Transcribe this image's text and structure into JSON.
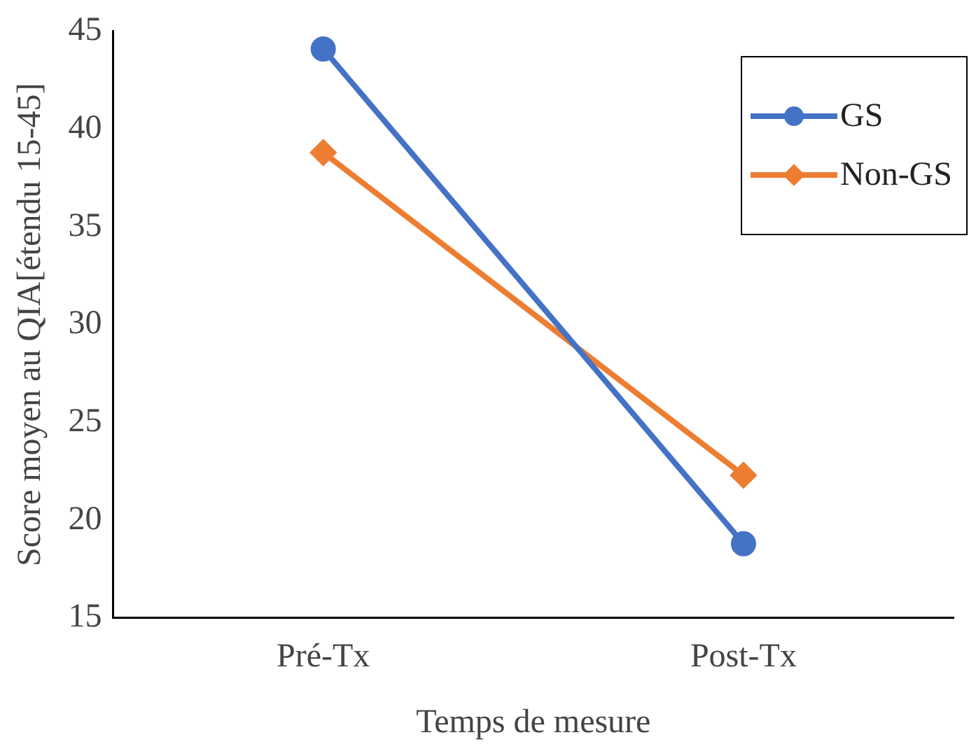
{
  "chart_data": {
    "type": "line",
    "xlabel": "Temps de mesure",
    "ylabel": "Score moyen au QIA[étendu 15-45]",
    "categories": [
      "Pré-Tx",
      "Post-Tx"
    ],
    "series": [
      {
        "name": "GS",
        "color": "#4472c4",
        "values": [
          44.1,
          18.8
        ],
        "marker": "circle"
      },
      {
        "name": "Non-GS",
        "color": "#ed7d31",
        "values": [
          38.8,
          22.3
        ],
        "marker": "diamond"
      }
    ],
    "ylim": [
      15,
      45
    ],
    "yticks": [
      15,
      20,
      25,
      30,
      35,
      40,
      45
    ],
    "grid": false,
    "legend": "top right",
    "line_style": "solid"
  }
}
